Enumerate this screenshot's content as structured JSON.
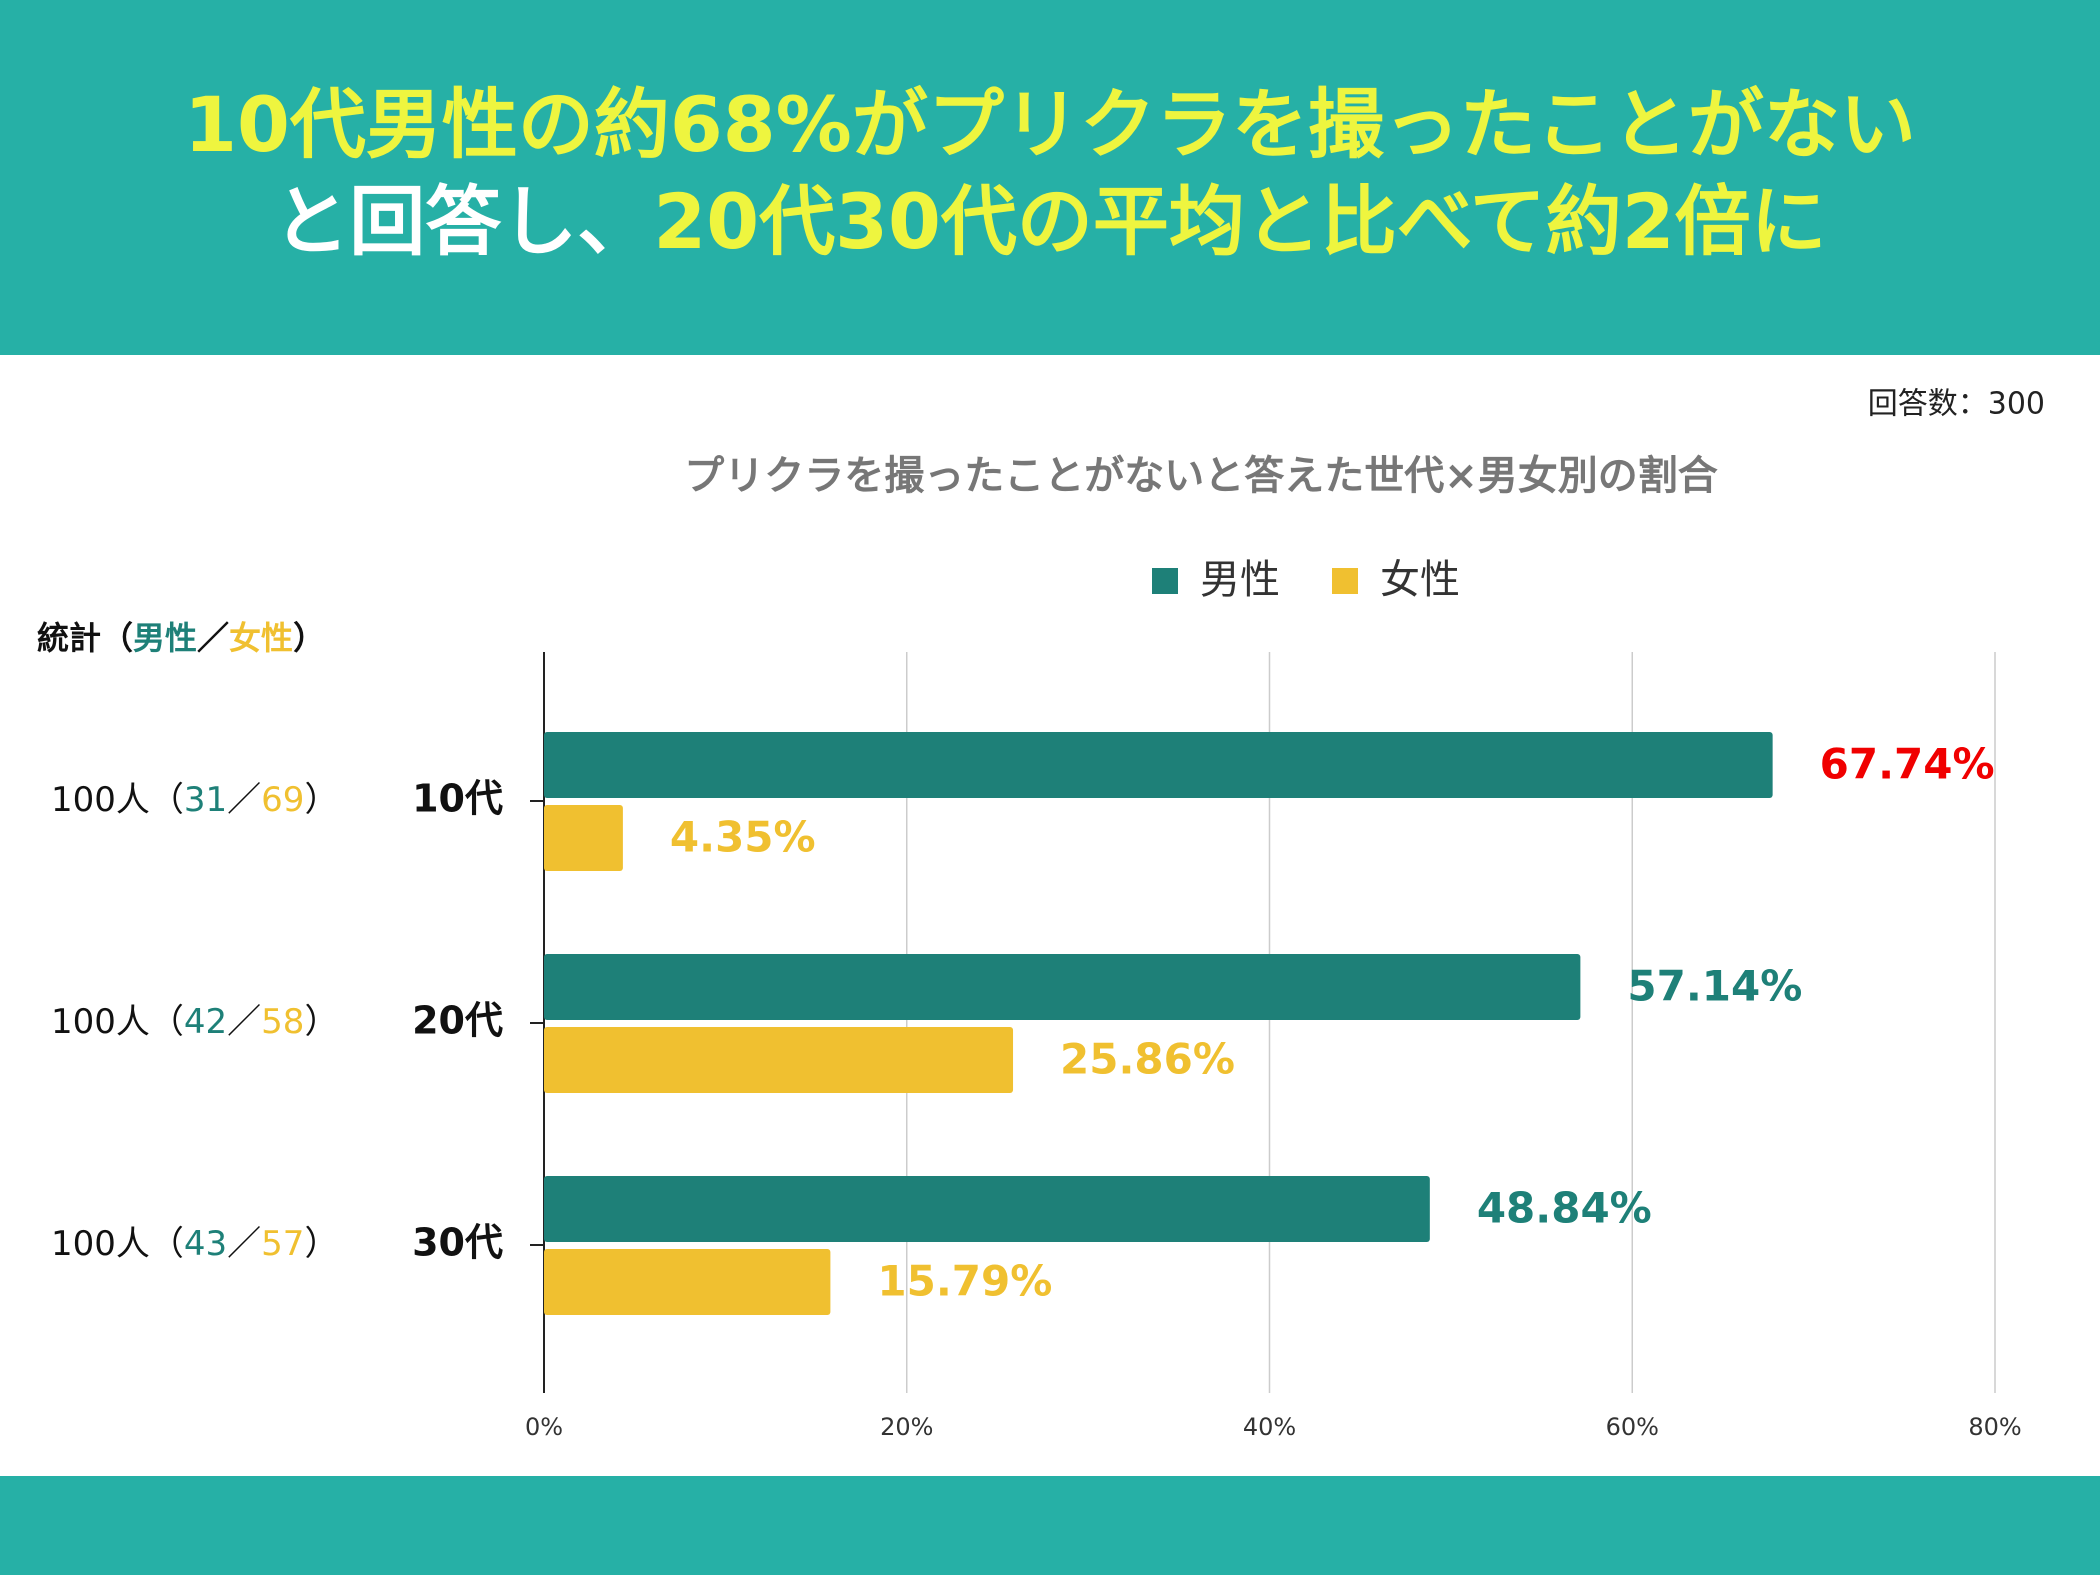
{
  "headline": [
    [
      {
        "text": "10代男性の約68%がプリクラを撮ったことがない",
        "color": "#eef53f"
      }
    ],
    [
      {
        "text": "と回答し、",
        "color": "#ffffff"
      },
      {
        "text": "20代30代の平均と比べて約2倍に",
        "color": "#eef53f"
      }
    ]
  ],
  "note": "回答数：300",
  "stats": {
    "header": [
      {
        "text": "統計（",
        "color": "#111111"
      },
      {
        "text": "男性",
        "color": "#1e8078"
      },
      {
        "text": "／",
        "color": "#111111"
      },
      {
        "text": "女性",
        "color": "#f0c030"
      },
      {
        "text": "）",
        "color": "#111111"
      }
    ],
    "rows": [
      [
        {
          "text": "100人（",
          "color": "#111111"
        },
        {
          "text": "31",
          "color": "#1e8078"
        },
        {
          "text": "／",
          "color": "#111111"
        },
        {
          "text": "69",
          "color": "#f0c030"
        },
        {
          "text": "）",
          "color": "#111111"
        }
      ],
      [
        {
          "text": "100人（",
          "color": "#111111"
        },
        {
          "text": "42",
          "color": "#1e8078"
        },
        {
          "text": "／",
          "color": "#111111"
        },
        {
          "text": "58",
          "color": "#f0c030"
        },
        {
          "text": "）",
          "color": "#111111"
        }
      ],
      [
        {
          "text": "100人（",
          "color": "#111111"
        },
        {
          "text": "43",
          "color": "#1e8078"
        },
        {
          "text": "／",
          "color": "#111111"
        },
        {
          "text": "57",
          "color": "#f0c030"
        },
        {
          "text": "）",
          "color": "#111111"
        }
      ]
    ]
  },
  "chart_data": {
    "type": "hbar",
    "title": "プリクラを撮ったことがないと答えた世代×男女別の割合",
    "categories": [
      "10代",
      "20代",
      "30代"
    ],
    "series": [
      {
        "name": "男性",
        "color": "#1e8078",
        "values": [
          67.74,
          57.14,
          48.84
        ],
        "value_labels": [
          "67.74%",
          "57.14%",
          "48.84%"
        ],
        "value_label_colors": [
          "#f00000",
          "#1e8078",
          "#1e8078"
        ]
      },
      {
        "name": "女性",
        "color": "#f0c030",
        "values": [
          4.35,
          25.86,
          15.79
        ],
        "value_labels": [
          "4.35%",
          "25.86%",
          "15.79%"
        ],
        "value_label_colors": [
          "#f0c030",
          "#f0c030",
          "#f0c030"
        ]
      }
    ],
    "xlim": [
      0,
      80
    ],
    "xticks": [
      {
        "value": 0,
        "label": "0%"
      },
      {
        "value": 20,
        "label": "20%"
      },
      {
        "value": 40,
        "label": "40%"
      },
      {
        "value": 60,
        "label": "60%"
      },
      {
        "value": 80,
        "label": "80%"
      }
    ],
    "grid": true,
    "legend": "top"
  }
}
